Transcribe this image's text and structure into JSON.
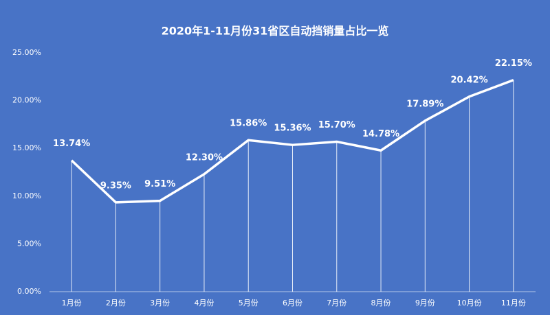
{
  "chart_data": {
    "type": "line",
    "title": "2020年1-11月份31省区自动挡销量占比一览",
    "categories": [
      "1月份",
      "2月份",
      "3月份",
      "4月份",
      "5月份",
      "6月份",
      "7月份",
      "8月份",
      "9月份",
      "10月份",
      "11月份"
    ],
    "values": [
      13.74,
      9.35,
      9.51,
      12.3,
      15.86,
      15.36,
      15.7,
      14.78,
      17.89,
      20.42,
      22.15
    ],
    "value_labels": [
      "13.74%",
      "9.35%",
      "9.51%",
      "12.30%",
      "15.86%",
      "15.36%",
      "15.70%",
      "14.78%",
      "17.89%",
      "20.42%",
      "22.15%"
    ],
    "color": "#ffffff",
    "background": "#4873c6",
    "ylim": [
      0,
      25
    ],
    "yticks": [
      {
        "value": 0,
        "label": "0.00%"
      },
      {
        "value": 5,
        "label": "5.00%"
      },
      {
        "value": 10,
        "label": "10.00%"
      },
      {
        "value": 15,
        "label": "15.00%"
      },
      {
        "value": 20,
        "label": "20.00%"
      },
      {
        "value": 25,
        "label": "25.00%"
      }
    ],
    "drop_lines": true
  }
}
